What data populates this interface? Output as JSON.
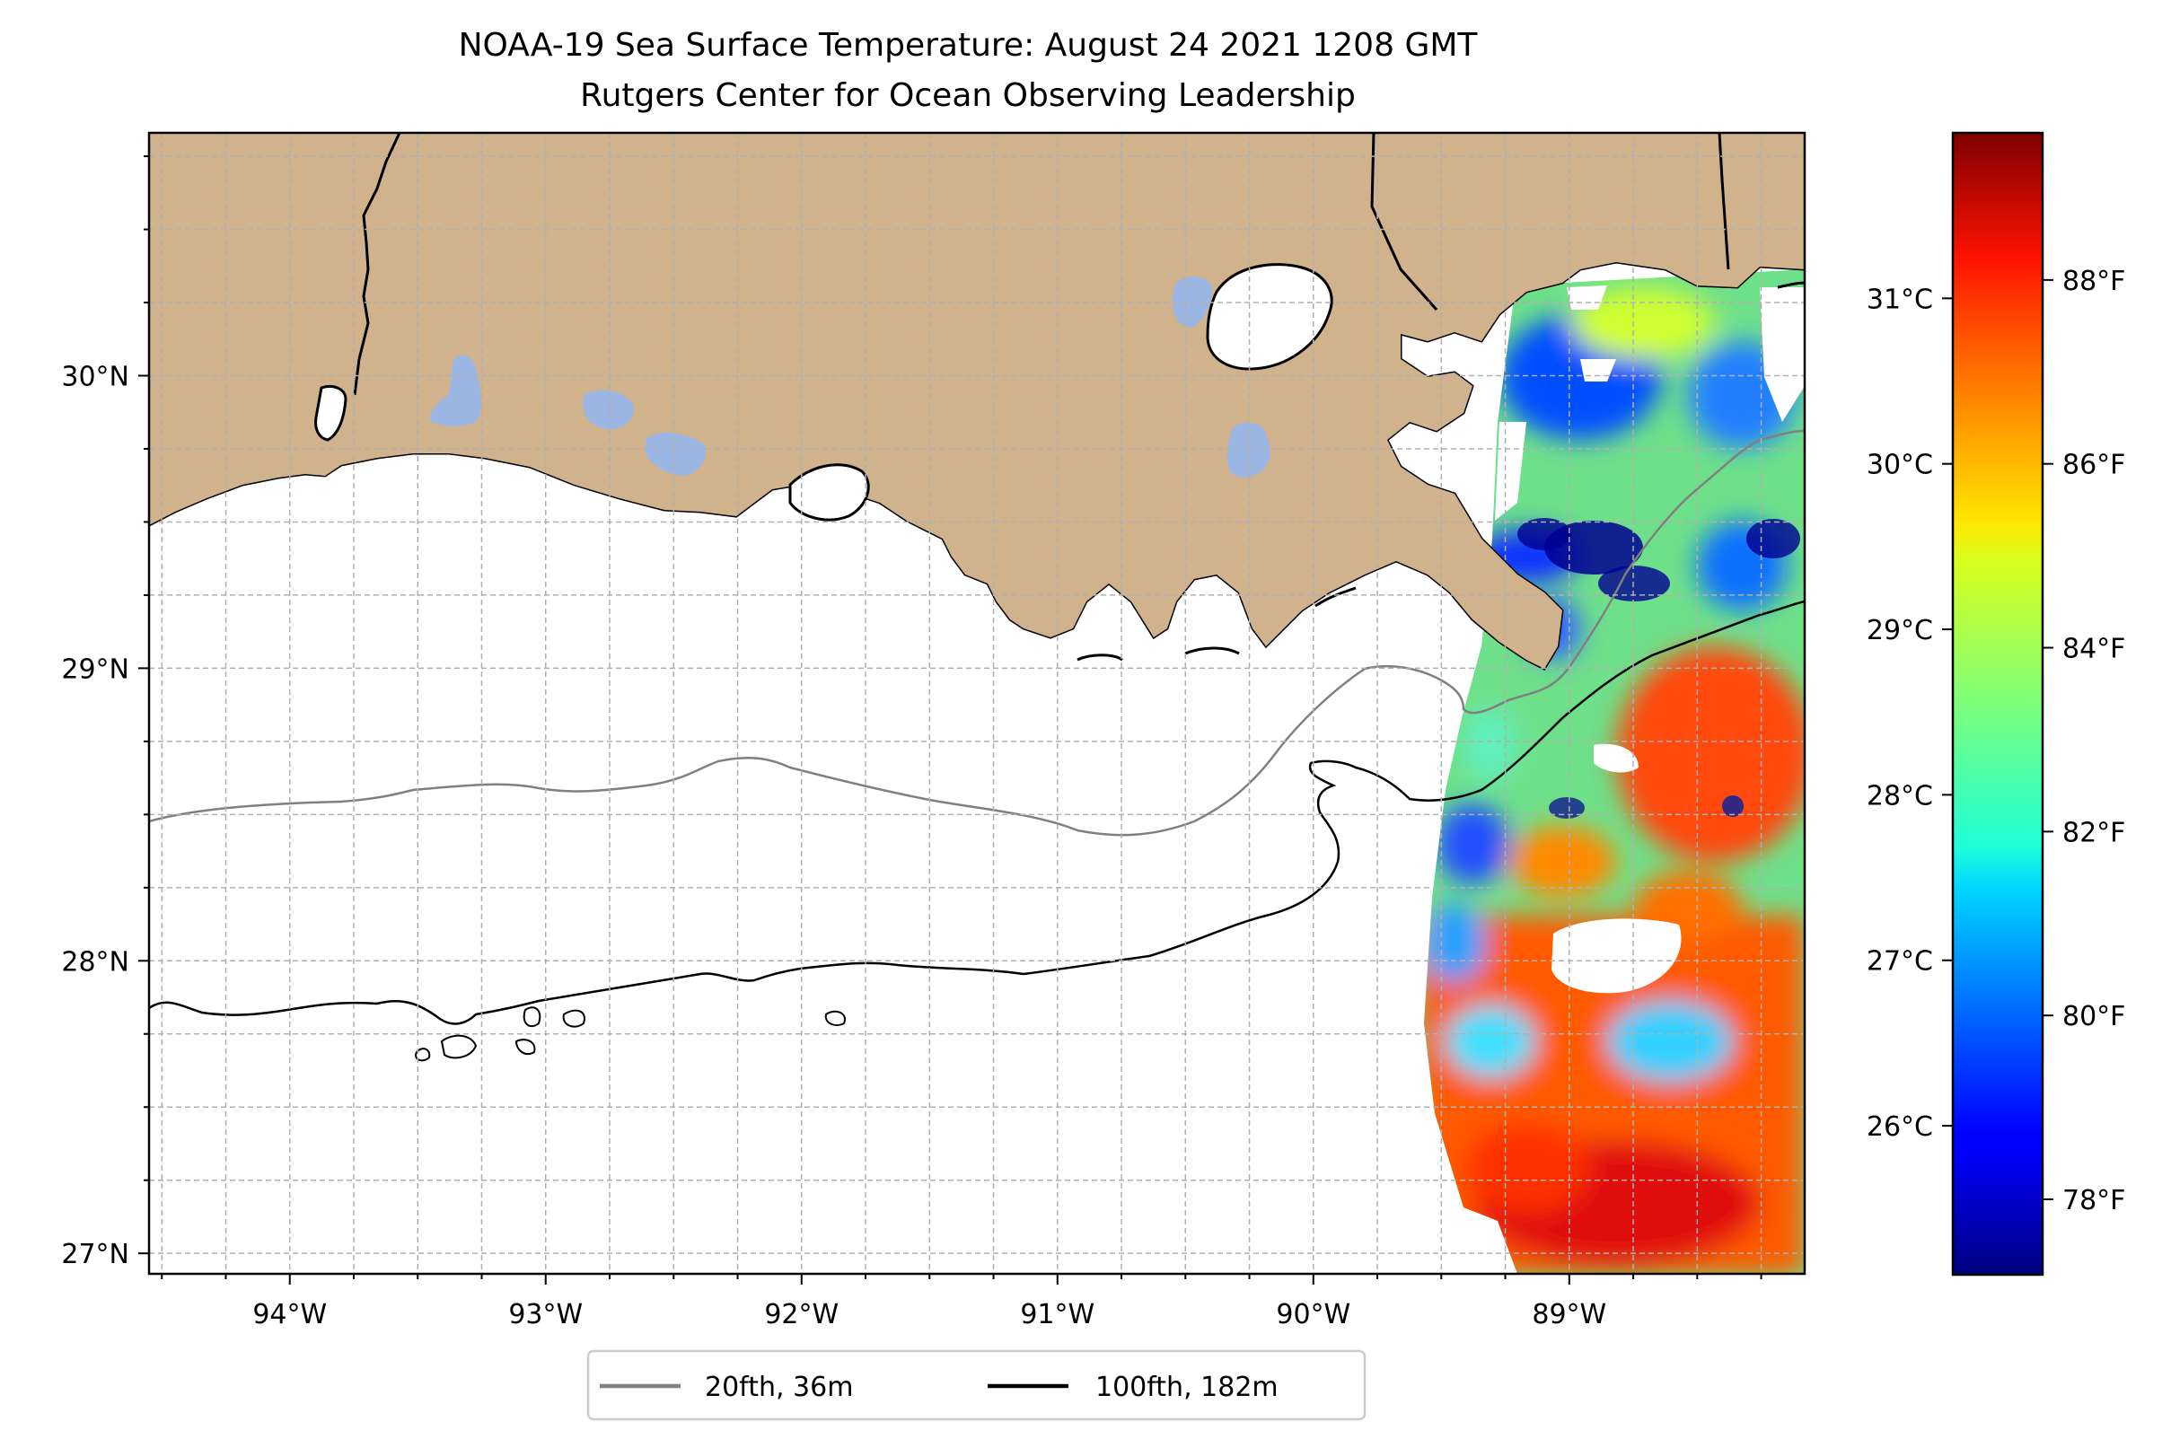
{
  "title": {
    "line1": "NOAA-19 Sea Surface Temperature: August 24 2021 1208 GMT",
    "line2": "Rutgers Center for Ocean Observing Leadership"
  },
  "map": {
    "lon_range": [
      -94.55,
      -88.08
    ],
    "lat_range": [
      26.93,
      30.83
    ],
    "lon_ticks": [
      {
        "value": -94,
        "label": "94°W"
      },
      {
        "value": -93,
        "label": "93°W"
      },
      {
        "value": -92,
        "label": "92°W"
      },
      {
        "value": -91,
        "label": "91°W"
      },
      {
        "value": -90,
        "label": "90°W"
      },
      {
        "value": -89,
        "label": "89°W"
      }
    ],
    "lat_ticks": [
      {
        "value": 27,
        "label": "27°N"
      },
      {
        "value": 28,
        "label": "28°N"
      },
      {
        "value": 29,
        "label": "29°N"
      },
      {
        "value": 30,
        "label": "30°N"
      }
    ],
    "grid": true,
    "land_color": "#d0b28c",
    "lake_color": "#9cb6e4",
    "ocean_color": "#ffffff"
  },
  "legend": {
    "placement": "bottom-center",
    "items": [
      {
        "label": "20fth, 36m",
        "color": "#808080"
      },
      {
        "label": "100fth, 182m",
        "color": "#000000"
      }
    ]
  },
  "colorbar": {
    "colormap": "jet",
    "celsius_range": [
      25.1,
      32.0
    ],
    "celsius_ticks": [
      {
        "value": 26,
        "label": "26°C"
      },
      {
        "value": 27,
        "label": "27°C"
      },
      {
        "value": 28,
        "label": "28°C"
      },
      {
        "value": 29,
        "label": "29°C"
      },
      {
        "value": 30,
        "label": "30°C"
      },
      {
        "value": 31,
        "label": "31°C"
      }
    ],
    "fahrenheit_ticks": [
      {
        "value": 78,
        "label": "78°F"
      },
      {
        "value": 80,
        "label": "80°F"
      },
      {
        "value": 82,
        "label": "82°F"
      },
      {
        "value": 84,
        "label": "84°F"
      },
      {
        "value": 86,
        "label": "86°F"
      },
      {
        "value": 88,
        "label": "88°F"
      }
    ]
  }
}
